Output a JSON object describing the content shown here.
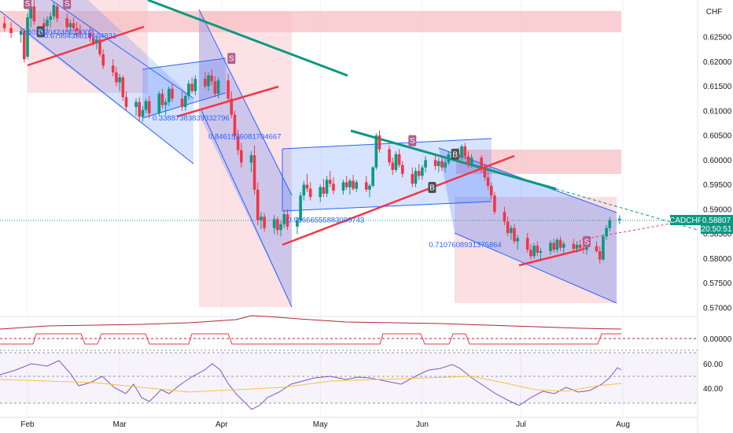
{
  "chart_data": {
    "type": "candlestick",
    "symbol": "CADCHF",
    "currency": "CHF",
    "last_price": "0.58807",
    "countdown": "20:50:51",
    "x_labels": [
      "Feb",
      "Mar",
      "Apr",
      "May",
      "Jun",
      "Jul",
      "Aug"
    ],
    "price_ticks": [
      "0.62500",
      "0.62000",
      "0.61500",
      "0.61000",
      "0.60500",
      "0.60000",
      "0.59500",
      "0.59000",
      "0.58500",
      "0.58000",
      "0.57500",
      "0.57000"
    ],
    "price_range": [
      0.5685,
      0.6305
    ],
    "cmf_ticks": [
      "0.00000"
    ],
    "rsi_ticks": [
      "60.00",
      "40.00"
    ],
    "annotations": [
      {
        "text": "0.4029904248012302",
        "date": "2023-01-30",
        "price": 0.62545
      },
      {
        "text": "0.6795435618624831",
        "date": "2023-02-06",
        "price": 0.62475
      },
      {
        "text": "0.33887383839332796",
        "date": "2023-03-11",
        "price": 0.60805
      },
      {
        "text": "0.8461536081704667",
        "date": "2023-03-28",
        "price": 0.6043
      },
      {
        "text": "0.99666555883090743",
        "date": "2023-04-21",
        "price": 0.58735
      },
      {
        "text": "0.7107608931375864",
        "date": "2023-06-03",
        "price": 0.5823
      }
    ],
    "signals": [
      {
        "kind": "B",
        "date": "2023-02-05",
        "price": 0.62605
      },
      {
        "kind": "S",
        "date": "2023-02-13",
        "price": 0.6318
      },
      {
        "kind": "S",
        "date": "2023-02-01",
        "price": 0.6318
      },
      {
        "kind": "S",
        "date": "2023-04-04",
        "price": 0.62065
      },
      {
        "kind": "S",
        "date": "2023-05-29",
        "price": 0.60395
      },
      {
        "kind": "B",
        "date": "2023-06-04",
        "price": 0.59445
      },
      {
        "kind": "B",
        "date": "2023-06-11",
        "price": 0.6012
      },
      {
        "kind": "S",
        "date": "2023-07-21",
        "price": 0.58345
      }
    ],
    "candles": [
      {
        "d": "2023-01-25",
        "o": 0.6278,
        "h": 0.6292,
        "l": 0.6262,
        "c": 0.6268
      },
      {
        "d": "2023-01-27",
        "o": 0.6268,
        "h": 0.628,
        "l": 0.6248,
        "c": 0.6258
      },
      {
        "d": "2023-01-30",
        "o": 0.6255,
        "h": 0.627,
        "l": 0.6238,
        "c": 0.6262
      },
      {
        "d": "2023-01-31",
        "o": 0.6262,
        "h": 0.6268,
        "l": 0.6198,
        "c": 0.6205
      },
      {
        "d": "2023-02-01",
        "o": 0.621,
        "h": 0.6298,
        "l": 0.6205,
        "c": 0.629
      },
      {
        "d": "2023-02-02",
        "o": 0.6288,
        "h": 0.632,
        "l": 0.627,
        "c": 0.6312
      },
      {
        "d": "2023-02-03",
        "o": 0.6312,
        "h": 0.6325,
        "l": 0.6275,
        "c": 0.6282
      },
      {
        "d": "2023-02-06",
        "o": 0.6278,
        "h": 0.6288,
        "l": 0.626,
        "c": 0.627
      },
      {
        "d": "2023-02-07",
        "o": 0.6272,
        "h": 0.6292,
        "l": 0.6262,
        "c": 0.6285
      },
      {
        "d": "2023-02-08",
        "o": 0.6285,
        "h": 0.63,
        "l": 0.627,
        "c": 0.6292
      },
      {
        "d": "2023-02-09",
        "o": 0.6292,
        "h": 0.632,
        "l": 0.6285,
        "c": 0.6315
      },
      {
        "d": "2023-02-10",
        "o": 0.6312,
        "h": 0.6318,
        "l": 0.628,
        "c": 0.6288
      },
      {
        "d": "2023-02-13",
        "o": 0.6288,
        "h": 0.6298,
        "l": 0.6262,
        "c": 0.627
      },
      {
        "d": "2023-02-14",
        "o": 0.627,
        "h": 0.6285,
        "l": 0.6255,
        "c": 0.6278
      },
      {
        "d": "2023-02-15",
        "o": 0.6278,
        "h": 0.629,
        "l": 0.6262,
        "c": 0.6268
      },
      {
        "d": "2023-02-16",
        "o": 0.6268,
        "h": 0.628,
        "l": 0.625,
        "c": 0.6262
      },
      {
        "d": "2023-02-17",
        "o": 0.6262,
        "h": 0.6275,
        "l": 0.6248,
        "c": 0.6258
      },
      {
        "d": "2023-02-20",
        "o": 0.6258,
        "h": 0.627,
        "l": 0.624,
        "c": 0.6248
      },
      {
        "d": "2023-02-21",
        "o": 0.6248,
        "h": 0.6262,
        "l": 0.6232,
        "c": 0.6238
      },
      {
        "d": "2023-02-22",
        "o": 0.6238,
        "h": 0.6255,
        "l": 0.6225,
        "c": 0.6245
      },
      {
        "d": "2023-02-23",
        "o": 0.6245,
        "h": 0.6252,
        "l": 0.621,
        "c": 0.6215
      },
      {
        "d": "2023-02-24",
        "o": 0.6215,
        "h": 0.6225,
        "l": 0.6185,
        "c": 0.6192
      },
      {
        "d": "2023-02-27",
        "o": 0.6192,
        "h": 0.6205,
        "l": 0.617,
        "c": 0.6178
      },
      {
        "d": "2023-02-28",
        "o": 0.6178,
        "h": 0.619,
        "l": 0.615,
        "c": 0.6158
      },
      {
        "d": "2023-03-01",
        "o": 0.6158,
        "h": 0.6175,
        "l": 0.614,
        "c": 0.6168
      },
      {
        "d": "2023-03-02",
        "o": 0.6168,
        "h": 0.6172,
        "l": 0.612,
        "c": 0.6128
      },
      {
        "d": "2023-03-03",
        "o": 0.6128,
        "h": 0.614,
        "l": 0.61,
        "c": 0.6108
      },
      {
        "d": "2023-03-06",
        "o": 0.6108,
        "h": 0.6125,
        "l": 0.609,
        "c": 0.6118
      },
      {
        "d": "2023-03-07",
        "o": 0.6118,
        "h": 0.6128,
        "l": 0.608,
        "c": 0.6088
      },
      {
        "d": "2023-03-08",
        "o": 0.6088,
        "h": 0.611,
        "l": 0.6078,
        "c": 0.6102
      },
      {
        "d": "2023-03-09",
        "o": 0.6102,
        "h": 0.6125,
        "l": 0.6095,
        "c": 0.612
      },
      {
        "d": "2023-03-10",
        "o": 0.612,
        "h": 0.613,
        "l": 0.6085,
        "c": 0.6095
      },
      {
        "d": "2023-03-13",
        "o": 0.6095,
        "h": 0.614,
        "l": 0.609,
        "c": 0.6135
      },
      {
        "d": "2023-03-14",
        "o": 0.6135,
        "h": 0.6145,
        "l": 0.6105,
        "c": 0.6112
      },
      {
        "d": "2023-03-15",
        "o": 0.6112,
        "h": 0.6125,
        "l": 0.6092,
        "c": 0.6118
      },
      {
        "d": "2023-03-16",
        "o": 0.6118,
        "h": 0.615,
        "l": 0.611,
        "c": 0.6145
      },
      {
        "d": "2023-03-17",
        "o": 0.6145,
        "h": 0.6155,
        "l": 0.6118,
        "c": 0.6125
      },
      {
        "d": "2023-03-20",
        "o": 0.6125,
        "h": 0.614,
        "l": 0.61,
        "c": 0.6108
      },
      {
        "d": "2023-03-21",
        "o": 0.6108,
        "h": 0.6135,
        "l": 0.61,
        "c": 0.613
      },
      {
        "d": "2023-03-22",
        "o": 0.613,
        "h": 0.6162,
        "l": 0.6122,
        "c": 0.6155
      },
      {
        "d": "2023-03-23",
        "o": 0.6155,
        "h": 0.6168,
        "l": 0.6135,
        "c": 0.614
      },
      {
        "d": "2023-03-24",
        "o": 0.614,
        "h": 0.6172,
        "l": 0.6132,
        "c": 0.6165
      },
      {
        "d": "2023-03-27",
        "o": 0.6165,
        "h": 0.618,
        "l": 0.6145,
        "c": 0.615
      },
      {
        "d": "2023-03-28",
        "o": 0.615,
        "h": 0.6178,
        "l": 0.614,
        "c": 0.6172
      },
      {
        "d": "2023-03-29",
        "o": 0.6172,
        "h": 0.6185,
        "l": 0.6152,
        "c": 0.616
      },
      {
        "d": "2023-03-30",
        "o": 0.616,
        "h": 0.617,
        "l": 0.6128,
        "c": 0.6135
      },
      {
        "d": "2023-03-31",
        "o": 0.6135,
        "h": 0.6168,
        "l": 0.6125,
        "c": 0.6162
      },
      {
        "d": "2023-04-03",
        "o": 0.6162,
        "h": 0.6175,
        "l": 0.6118,
        "c": 0.6125
      },
      {
        "d": "2023-04-04",
        "o": 0.6125,
        "h": 0.614,
        "l": 0.6085,
        "c": 0.6092
      },
      {
        "d": "2023-04-05",
        "o": 0.6092,
        "h": 0.61,
        "l": 0.604,
        "c": 0.6048
      },
      {
        "d": "2023-04-06",
        "o": 0.6048,
        "h": 0.6062,
        "l": 0.601,
        "c": 0.602
      },
      {
        "d": "2023-04-07",
        "o": 0.602,
        "h": 0.6035,
        "l": 0.5985,
        "c": 0.5995
      },
      {
        "d": "2023-04-10",
        "o": 0.5995,
        "h": 0.6018,
        "l": 0.5975,
        "c": 0.601
      },
      {
        "d": "2023-04-11",
        "o": 0.601,
        "h": 0.603,
        "l": 0.593,
        "c": 0.594
      },
      {
        "d": "2023-04-12",
        "o": 0.594,
        "h": 0.5955,
        "l": 0.5868,
        "c": 0.5878
      },
      {
        "d": "2023-04-13",
        "o": 0.5878,
        "h": 0.5895,
        "l": 0.586,
        "c": 0.5885
      },
      {
        "d": "2023-04-14",
        "o": 0.5885,
        "h": 0.5892,
        "l": 0.5855,
        "c": 0.5862
      },
      {
        "d": "2023-04-17",
        "o": 0.5862,
        "h": 0.5888,
        "l": 0.585,
        "c": 0.588
      },
      {
        "d": "2023-04-18",
        "o": 0.588,
        "h": 0.5885,
        "l": 0.5848,
        "c": 0.5858
      },
      {
        "d": "2023-04-19",
        "o": 0.5858,
        "h": 0.5878,
        "l": 0.5845,
        "c": 0.587
      },
      {
        "d": "2023-04-20",
        "o": 0.587,
        "h": 0.5898,
        "l": 0.5862,
        "c": 0.589
      },
      {
        "d": "2023-04-21",
        "o": 0.589,
        "h": 0.59,
        "l": 0.5858,
        "c": 0.5865
      },
      {
        "d": "2023-04-24",
        "o": 0.5865,
        "h": 0.5885,
        "l": 0.585,
        "c": 0.5878
      },
      {
        "d": "2023-04-25",
        "o": 0.5878,
        "h": 0.5935,
        "l": 0.5872,
        "c": 0.5928
      },
      {
        "d": "2023-04-26",
        "o": 0.5928,
        "h": 0.5958,
        "l": 0.5918,
        "c": 0.595
      },
      {
        "d": "2023-04-27",
        "o": 0.595,
        "h": 0.5972,
        "l": 0.5935,
        "c": 0.5942
      },
      {
        "d": "2023-04-28",
        "o": 0.5942,
        "h": 0.5955,
        "l": 0.5918,
        "c": 0.5925
      },
      {
        "d": "2023-05-01",
        "o": 0.5925,
        "h": 0.595,
        "l": 0.5915,
        "c": 0.5945
      },
      {
        "d": "2023-05-02",
        "o": 0.5945,
        "h": 0.5962,
        "l": 0.5925,
        "c": 0.5932
      },
      {
        "d": "2023-05-03",
        "o": 0.5932,
        "h": 0.5968,
        "l": 0.5925,
        "c": 0.596
      },
      {
        "d": "2023-05-04",
        "o": 0.596,
        "h": 0.5978,
        "l": 0.5945,
        "c": 0.5952
      },
      {
        "d": "2023-05-05",
        "o": 0.5952,
        "h": 0.5965,
        "l": 0.593,
        "c": 0.5938
      },
      {
        "d": "2023-05-08",
        "o": 0.5938,
        "h": 0.596,
        "l": 0.593,
        "c": 0.5955
      },
      {
        "d": "2023-05-09",
        "o": 0.5955,
        "h": 0.5968,
        "l": 0.594,
        "c": 0.5945
      },
      {
        "d": "2023-05-10",
        "o": 0.5945,
        "h": 0.5962,
        "l": 0.593,
        "c": 0.5958
      },
      {
        "d": "2023-05-11",
        "o": 0.5958,
        "h": 0.597,
        "l": 0.5938,
        "c": 0.5942
      },
      {
        "d": "2023-05-12",
        "o": 0.5942,
        "h": 0.596,
        "l": 0.5935,
        "c": 0.5955
      },
      {
        "d": "2023-05-15",
        "o": 0.5955,
        "h": 0.5968,
        "l": 0.5935,
        "c": 0.594
      },
      {
        "d": "2023-05-16",
        "o": 0.594,
        "h": 0.5952,
        "l": 0.5925,
        "c": 0.5948
      },
      {
        "d": "2023-05-17",
        "o": 0.5948,
        "h": 0.5988,
        "l": 0.5945,
        "c": 0.5985
      },
      {
        "d": "2023-05-18",
        "o": 0.5985,
        "h": 0.6055,
        "l": 0.598,
        "c": 0.605
      },
      {
        "d": "2023-05-19",
        "o": 0.605,
        "h": 0.606,
        "l": 0.6015,
        "c": 0.6022
      },
      {
        "d": "2023-05-22",
        "o": 0.6022,
        "h": 0.603,
        "l": 0.5988,
        "c": 0.5995
      },
      {
        "d": "2023-05-23",
        "o": 0.5995,
        "h": 0.6005,
        "l": 0.597,
        "c": 0.598
      },
      {
        "d": "2023-05-24",
        "o": 0.598,
        "h": 0.6018,
        "l": 0.5975,
        "c": 0.6012
      },
      {
        "d": "2023-05-25",
        "o": 0.6012,
        "h": 0.6022,
        "l": 0.5985,
        "c": 0.599
      },
      {
        "d": "2023-05-26",
        "o": 0.599,
        "h": 0.5998,
        "l": 0.5965,
        "c": 0.5972
      },
      {
        "d": "2023-05-29",
        "o": 0.5972,
        "h": 0.5985,
        "l": 0.5945,
        "c": 0.5952
      },
      {
        "d": "2023-05-30",
        "o": 0.5952,
        "h": 0.5985,
        "l": 0.5945,
        "c": 0.5978
      },
      {
        "d": "2023-05-31",
        "o": 0.5978,
        "h": 0.5992,
        "l": 0.596,
        "c": 0.5968
      },
      {
        "d": "2023-06-01",
        "o": 0.5968,
        "h": 0.599,
        "l": 0.596,
        "c": 0.5985
      },
      {
        "d": "2023-06-02",
        "o": 0.5985,
        "h": 0.6008,
        "l": 0.5975,
        "c": 0.6
      },
      {
        "d": "2023-06-05",
        "o": 0.6,
        "h": 0.6012,
        "l": 0.598,
        "c": 0.5988
      },
      {
        "d": "2023-06-06",
        "o": 0.5988,
        "h": 0.6005,
        "l": 0.5975,
        "c": 0.5998
      },
      {
        "d": "2023-06-07",
        "o": 0.5998,
        "h": 0.601,
        "l": 0.5978,
        "c": 0.5985
      },
      {
        "d": "2023-06-08",
        "o": 0.5985,
        "h": 0.6002,
        "l": 0.5975,
        "c": 0.5995
      },
      {
        "d": "2023-06-09",
        "o": 0.5995,
        "h": 0.6018,
        "l": 0.599,
        "c": 0.6012
      },
      {
        "d": "2023-06-12",
        "o": 0.6012,
        "h": 0.6025,
        "l": 0.5998,
        "c": 0.6005
      },
      {
        "d": "2023-06-13",
        "o": 0.6005,
        "h": 0.6032,
        "l": 0.6,
        "c": 0.6028
      },
      {
        "d": "2023-06-14",
        "o": 0.6028,
        "h": 0.6035,
        "l": 0.6002,
        "c": 0.6008
      },
      {
        "d": "2023-06-15",
        "o": 0.6008,
        "h": 0.6018,
        "l": 0.5985,
        "c": 0.5992
      },
      {
        "d": "2023-06-16",
        "o": 0.5992,
        "h": 0.6012,
        "l": 0.5985,
        "c": 0.6005
      },
      {
        "d": "2023-06-19",
        "o": 0.6005,
        "h": 0.601,
        "l": 0.5975,
        "c": 0.5982
      },
      {
        "d": "2023-06-20",
        "o": 0.5982,
        "h": 0.5992,
        "l": 0.5958,
        "c": 0.5965
      },
      {
        "d": "2023-06-21",
        "o": 0.5965,
        "h": 0.5975,
        "l": 0.594,
        "c": 0.5948
      },
      {
        "d": "2023-06-22",
        "o": 0.5948,
        "h": 0.5955,
        "l": 0.592,
        "c": 0.5928
      },
      {
        "d": "2023-06-23",
        "o": 0.5928,
        "h": 0.5935,
        "l": 0.589,
        "c": 0.5895
      },
      {
        "d": "2023-06-26",
        "o": 0.5895,
        "h": 0.5905,
        "l": 0.5868,
        "c": 0.5875
      },
      {
        "d": "2023-06-27",
        "o": 0.5875,
        "h": 0.5885,
        "l": 0.5845,
        "c": 0.5852
      },
      {
        "d": "2023-06-28",
        "o": 0.5852,
        "h": 0.5868,
        "l": 0.5838,
        "c": 0.5862
      },
      {
        "d": "2023-06-29",
        "o": 0.5862,
        "h": 0.587,
        "l": 0.583,
        "c": 0.5835
      },
      {
        "d": "2023-06-30",
        "o": 0.5835,
        "h": 0.5848,
        "l": 0.5818,
        "c": 0.5842
      },
      {
        "d": "2023-07-03",
        "o": 0.5842,
        "h": 0.5852,
        "l": 0.5812,
        "c": 0.5818
      },
      {
        "d": "2023-07-04",
        "o": 0.5818,
        "h": 0.583,
        "l": 0.5798,
        "c": 0.5805
      },
      {
        "d": "2023-07-05",
        "o": 0.5805,
        "h": 0.5832,
        "l": 0.58,
        "c": 0.5826
      },
      {
        "d": "2023-07-06",
        "o": 0.5826,
        "h": 0.5835,
        "l": 0.5805,
        "c": 0.5812
      },
      {
        "d": "2023-07-07",
        "o": 0.5812,
        "h": 0.5822,
        "l": 0.5795,
        "c": 0.5815
      },
      {
        "d": "2023-07-10",
        "o": 0.5815,
        "h": 0.5838,
        "l": 0.5808,
        "c": 0.5832
      },
      {
        "d": "2023-07-11",
        "o": 0.5832,
        "h": 0.584,
        "l": 0.5812,
        "c": 0.5818
      },
      {
        "d": "2023-07-12",
        "o": 0.5818,
        "h": 0.5842,
        "l": 0.5812,
        "c": 0.5838
      },
      {
        "d": "2023-07-13",
        "o": 0.5838,
        "h": 0.5845,
        "l": 0.5815,
        "c": 0.5822
      },
      {
        "d": "2023-07-14",
        "o": 0.5822,
        "h": 0.5835,
        "l": 0.581,
        "c": 0.583
      },
      {
        "d": "2023-07-17",
        "o": 0.583,
        "h": 0.584,
        "l": 0.5815,
        "c": 0.582
      },
      {
        "d": "2023-07-18",
        "o": 0.582,
        "h": 0.5835,
        "l": 0.5812,
        "c": 0.5828
      },
      {
        "d": "2023-07-19",
        "o": 0.5828,
        "h": 0.5838,
        "l": 0.5815,
        "c": 0.5822
      },
      {
        "d": "2023-07-20",
        "o": 0.5822,
        "h": 0.5832,
        "l": 0.581,
        "c": 0.5818
      },
      {
        "d": "2023-07-21",
        "o": 0.5818,
        "h": 0.583,
        "l": 0.5808,
        "c": 0.5825
      },
      {
        "d": "2023-07-24",
        "o": 0.5825,
        "h": 0.5835,
        "l": 0.5812,
        "c": 0.5815
      },
      {
        "d": "2023-07-25",
        "o": 0.5815,
        "h": 0.5825,
        "l": 0.579,
        "c": 0.5798
      },
      {
        "d": "2023-07-26",
        "o": 0.5798,
        "h": 0.585,
        "l": 0.5795,
        "c": 0.5845
      },
      {
        "d": "2023-07-27",
        "o": 0.5845,
        "h": 0.5868,
        "l": 0.5838,
        "c": 0.5862
      },
      {
        "d": "2023-07-28",
        "o": 0.5862,
        "h": 0.5885,
        "l": 0.5855,
        "c": 0.5878
      },
      {
        "d": "2023-07-31",
        "o": 0.5878,
        "h": 0.5888,
        "l": 0.587,
        "c": 0.5881
      }
    ]
  },
  "colors": {
    "bull": "#089981",
    "bear": "#f23645",
    "channel_blue": "#2962ff",
    "green_trend": "#089981",
    "red_trend": "#f23645",
    "price_tag": "#089981",
    "rsi_line": "#7e57c2",
    "rsi_ma": "#f7c244"
  }
}
